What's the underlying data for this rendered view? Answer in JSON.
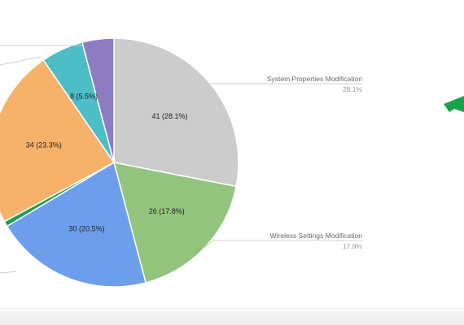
{
  "chart_data": {
    "type": "pie",
    "slices": [
      {
        "value": 41,
        "label": "41 (28.1%)",
        "name": "System Properties Modification",
        "pct": "28.1%",
        "color": "#cccccc"
      },
      {
        "value": 26,
        "label": "26 (17.8%)",
        "name": "Wireless Settings Modification",
        "pct": "17.8%",
        "color": "#93c47d"
      },
      {
        "value": 30,
        "label": "30 (20.5%)",
        "name": "",
        "pct": "",
        "color": "#6d9eeb"
      },
      {
        "value": 1,
        "label": "",
        "name": "",
        "pct": "",
        "color": "#1e9e4f"
      },
      {
        "value": 34,
        "label": "34 (23.3%)",
        "name": "",
        "pct": "",
        "color": "#f6b26b"
      },
      {
        "value": 8,
        "label": "8 (5.5%)",
        "name": "",
        "pct": "",
        "color": "#4dbdc6"
      },
      {
        "value": 6,
        "label": "",
        "name": "",
        "pct": "",
        "color": "#8e7cc3"
      }
    ]
  },
  "background_mark_color": "#19a24a"
}
